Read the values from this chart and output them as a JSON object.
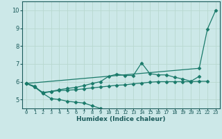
{
  "xlabel": "Humidex (Indice chaleur)",
  "xlim": [
    -0.5,
    23.5
  ],
  "ylim": [
    4.5,
    10.5
  ],
  "yticks": [
    5,
    6,
    7,
    8,
    9,
    10
  ],
  "xticks": [
    0,
    1,
    2,
    3,
    4,
    5,
    6,
    7,
    8,
    9,
    10,
    11,
    12,
    13,
    14,
    15,
    16,
    17,
    18,
    19,
    20,
    21,
    22,
    23
  ],
  "bg_color": "#cce8e8",
  "grid_color": "#b8d8d0",
  "line_color": "#1a7a6a",
  "tick_color": "#1a5a5a",
  "series": [
    {
      "x": [
        0,
        1,
        2,
        3,
        4,
        5,
        6,
        7,
        8,
        9
      ],
      "y": [
        5.9,
        5.75,
        5.35,
        5.05,
        5.0,
        4.9,
        4.85,
        4.8,
        4.65,
        4.5
      ],
      "marker": "D",
      "markersize": 2.5
    },
    {
      "x": [
        0,
        1,
        2,
        3,
        4,
        5,
        6,
        7,
        8,
        9,
        10,
        11,
        12,
        13,
        14,
        15,
        16,
        17,
        18,
        19,
        20,
        21,
        22
      ],
      "y": [
        5.9,
        5.7,
        5.4,
        5.45,
        5.5,
        5.52,
        5.55,
        5.6,
        5.65,
        5.7,
        5.75,
        5.8,
        5.82,
        5.88,
        5.92,
        5.97,
        6.0,
        6.0,
        6.0,
        6.0,
        6.0,
        6.02,
        6.02
      ],
      "marker": "D",
      "markersize": 2.5
    },
    {
      "x": [
        0,
        1,
        2,
        3,
        4,
        5,
        6,
        7,
        8,
        9,
        10,
        11,
        12,
        13,
        14,
        15,
        16,
        17,
        18,
        19,
        20,
        21
      ],
      "y": [
        5.9,
        5.7,
        5.35,
        5.45,
        5.55,
        5.62,
        5.68,
        5.78,
        5.9,
        6.0,
        6.3,
        6.42,
        6.35,
        6.35,
        7.05,
        6.45,
        6.38,
        6.38,
        6.25,
        6.15,
        6.02,
        6.3
      ],
      "marker": "D",
      "markersize": 2.5
    },
    {
      "x": [
        0,
        21,
        22,
        23
      ],
      "y": [
        5.9,
        6.75,
        8.95,
        10.0
      ],
      "marker": "D",
      "markersize": 2.5
    }
  ]
}
